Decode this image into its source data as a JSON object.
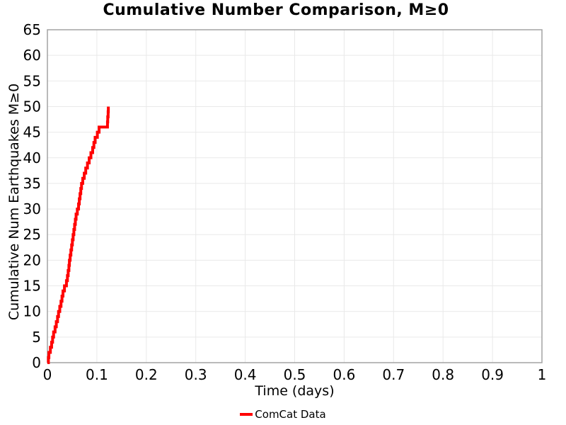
{
  "chart_data": {
    "type": "line",
    "step_shape": "post",
    "title": "Cumulative Number Comparison, M≥0",
    "xlabel": "Time (days)",
    "ylabel": "Cumulative Num Earthquakes M≥0",
    "xlim": [
      0,
      1
    ],
    "ylim": [
      0,
      65
    ],
    "grid": true,
    "grid_color": "#e9e9e9",
    "spine_color": "#a3a3a3",
    "background_color": "#ffffff",
    "xticks": [
      0,
      0.1,
      0.2,
      0.3,
      0.4,
      0.5,
      0.6,
      0.7,
      0.8,
      0.9,
      1
    ],
    "xtick_labels": [
      "0",
      "0.1",
      "0.2",
      "0.3",
      "0.4",
      "0.5",
      "0.6",
      "0.7",
      "0.8",
      "0.9",
      "1"
    ],
    "yticks": [
      0,
      5,
      10,
      15,
      20,
      25,
      30,
      35,
      40,
      45,
      50,
      55,
      60,
      65
    ],
    "ytick_labels": [
      "0",
      "5",
      "10",
      "15",
      "20",
      "25",
      "30",
      "35",
      "40",
      "45",
      "50",
      "55",
      "60",
      "65"
    ],
    "legend_position": "bottom-center",
    "legend": [
      {
        "label": "ComCat Data",
        "color": "#ff0000"
      }
    ],
    "series": [
      {
        "name": "ComCat Data",
        "color": "#ff0000",
        "line_width": 4,
        "start": {
          "x": 0,
          "y": 0
        },
        "event_times_days": [
          0.002,
          0.003,
          0.006,
          0.0085,
          0.0105,
          0.0125,
          0.0155,
          0.018,
          0.0205,
          0.0225,
          0.025,
          0.0275,
          0.0295,
          0.0315,
          0.0345,
          0.0385,
          0.0405,
          0.042,
          0.0435,
          0.0445,
          0.046,
          0.0475,
          0.049,
          0.0505,
          0.052,
          0.0535,
          0.055,
          0.0565,
          0.058,
          0.0605,
          0.063,
          0.0645,
          0.066,
          0.0675,
          0.069,
          0.0715,
          0.0745,
          0.0775,
          0.081,
          0.0845,
          0.088,
          0.0915,
          0.094,
          0.0965,
          0.101,
          0.1045,
          0.1215,
          0.122,
          0.1228,
          0.1232
        ],
        "cumulative_counts": [
          1,
          2,
          3,
          4,
          5,
          6,
          7,
          8,
          9,
          10,
          11,
          12,
          13,
          14,
          15,
          16,
          17,
          18,
          19,
          20,
          21,
          22,
          23,
          24,
          25,
          26,
          27,
          28,
          29,
          30,
          31,
          32,
          33,
          34,
          35,
          36,
          37,
          38,
          39,
          40,
          41,
          42,
          43,
          44,
          45,
          46,
          47,
          48,
          49,
          50
        ],
        "max_count": 50,
        "last_event_time_days": 0.1232
      }
    ]
  }
}
